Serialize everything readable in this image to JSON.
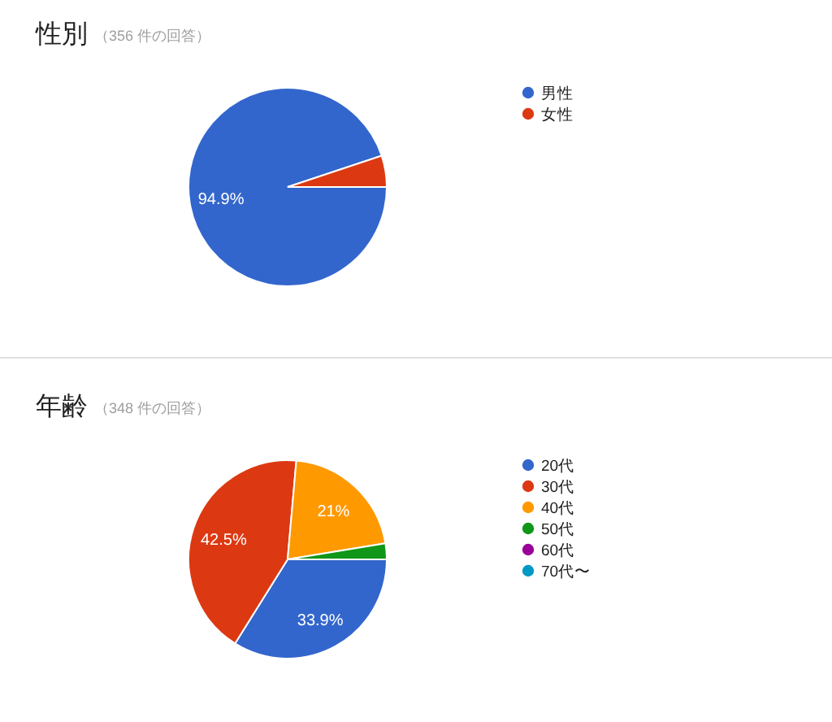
{
  "chart_data": [
    {
      "type": "pie",
      "title": "性別",
      "subtitle": "（356 件の回答）",
      "categories": [
        "男性",
        "女性"
      ],
      "values": [
        94.9,
        5.1
      ],
      "colors": [
        "#3366cc",
        "#dc3912"
      ],
      "value_labels": [
        "94.9%",
        null
      ],
      "legend": "right"
    },
    {
      "type": "pie",
      "title": "年齢",
      "subtitle": "（348 件の回答）",
      "categories": [
        "20代",
        "30代",
        "40代",
        "50代",
        "60代",
        "70代〜"
      ],
      "values": [
        33.9,
        42.5,
        21,
        2.6,
        0,
        0
      ],
      "colors": [
        "#3366cc",
        "#dc3912",
        "#ff9900",
        "#109618",
        "#990099",
        "#0099c6"
      ],
      "value_labels": [
        "33.9%",
        "42.5%",
        "21%",
        null,
        null,
        null
      ],
      "legend": "right"
    }
  ]
}
